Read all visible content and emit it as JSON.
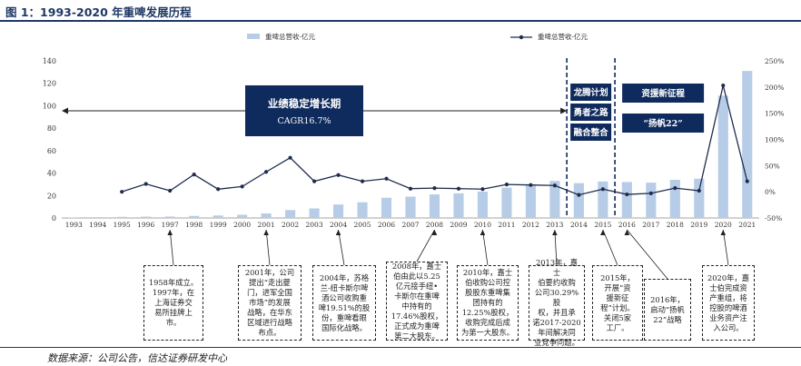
{
  "figure_title": "图 1：1993-2020 年重啤发展历程",
  "source_note": "数据来源：公司公告，信达证券研发中心",
  "colors": {
    "bar": "#b7cce6",
    "line": "#1f2d4d",
    "accent": "#1f3864",
    "banner": "#0f2a5c"
  },
  "chart_data": {
    "type": "bar",
    "categories": [
      "1993",
      "1994",
      "1995",
      "1996",
      "1997",
      "1998",
      "1999",
      "2000",
      "2001",
      "2002",
      "2003",
      "2004",
      "2005",
      "2006",
      "2007",
      "2008",
      "2009",
      "2010",
      "2011",
      "2012",
      "2013",
      "2014",
      "2015",
      "2016",
      "2017",
      "2018",
      "2019",
      "2020",
      "2021"
    ],
    "series": [
      {
        "name": "重啤总营收-亿元",
        "axis": "left",
        "type": "bar",
        "values": [
          0.5,
          0.7,
          1.0,
          1.2,
          1.3,
          1.8,
          2.2,
          2.8,
          4.0,
          7.0,
          8.5,
          12.0,
          14.0,
          18.0,
          19.0,
          21.0,
          22.0,
          23.5,
          27.0,
          30.0,
          33.0,
          31.0,
          32.5,
          32.0,
          31.5,
          34.0,
          35.0,
          109.0,
          131.0
        ]
      },
      {
        "name": "重啤总营收-亿元",
        "axis": "right",
        "type": "line",
        "values": [
          null,
          null,
          0,
          15,
          2,
          33,
          5,
          10,
          38,
          65,
          20,
          32,
          20,
          25,
          6,
          7,
          6,
          5,
          14,
          13,
          12,
          -6,
          5,
          -5,
          -3,
          7,
          2,
          203,
          20
        ]
      }
    ],
    "ylim_left": [
      0,
      140
    ],
    "yticks_left": [
      0,
      20,
      40,
      60,
      80,
      100,
      120,
      140
    ],
    "ylim_right": [
      -50,
      250
    ],
    "yticks_right": [
      "-50%",
      "0%",
      "50%",
      "100%",
      "150%",
      "200%",
      "250%"
    ],
    "grid": false,
    "legend_position": "top",
    "annotations": {
      "stable_growth": {
        "line1": "业绩稳定增长期",
        "line2": "CAGR16.7%"
      },
      "phase2": [
        "龙腾计划",
        "勇者之路",
        "融合整合"
      ],
      "phase3": [
        "资援新征程",
        "“扬帆22”"
      ]
    },
    "callouts": [
      {
        "year": "1997",
        "text": "1958年成立。\n1997年，在\n上海证券交\n易所挂牌上\n市。"
      },
      {
        "year": "2001",
        "text": "2001年，公司\n提出“走出夔\n门，进军全国\n市场”的发展\n战略，在华东\n区域进行战略\n布点。"
      },
      {
        "year": "2004",
        "text": "2004年，苏格\n兰-纽卡斯尔啤\n酒公司收购重\n啤19.51%的股\n份，重啤看眼\n国际化战略。"
      },
      {
        "year": "2008",
        "text": "2008年，嘉士\n伯由此以5.25\n亿元接手纽•\n卡斯尔在重啤\n中持有的\n17.46%股权，\n正式成为重啤\n第二大股东。"
      },
      {
        "year": "2010",
        "text": "2010年，嘉士\n伯收购公司控\n股股东重啤集\n团持有的\n12.25%股权，\n收购完成后成\n为第一大股东。"
      },
      {
        "year": "2013",
        "text": "2013年，嘉士\n伯要约收购\n公司30.29%股\n权，并且承\n诺2017-2020\n年间解决同\n业竞争问题。"
      },
      {
        "year": "2015",
        "text": "2015年，\n开展“资\n援新征\n程”计划。\n关闭5家\n工厂。"
      },
      {
        "year": "2016",
        "text": "2016年，\n启动“扬帆\n22”战略"
      },
      {
        "year": "2020",
        "text": "2020年，嘉\n士伯完成资\n产重组，将\n控股的啤酒\n业务资产注\n入公司。"
      }
    ]
  }
}
